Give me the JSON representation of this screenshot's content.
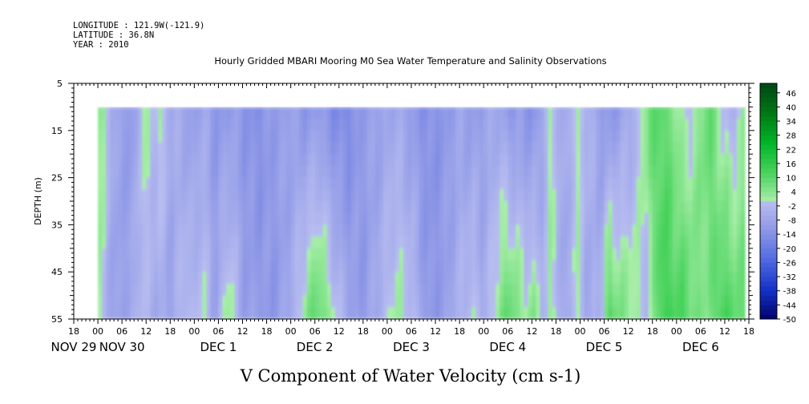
{
  "chart_data": {
    "type": "heatmap",
    "header": {
      "longitude": "LONGITUDE : 121.9W(-121.9)",
      "latitude": "LATITUDE : 36.8N",
      "year": "YEAR : 2010"
    },
    "title": "Hourly Gridded MBARI Mooring M0 Sea Water Temperature and Salinity Observations",
    "xlabel": "V Component of Water Velocity (cm s-1)",
    "ylabel": "DEPTH (m)",
    "x_unit": "hours",
    "x_range_hours": [
      -6,
      162
    ],
    "data_x_range_hours": [
      0,
      161
    ],
    "y_range": [
      5,
      55
    ],
    "data_y_range": [
      10,
      55
    ],
    "y_inverted": true,
    "y_ticks": [
      5,
      15,
      25,
      35,
      45,
      55
    ],
    "hour_ticks": [
      {
        "hours": -6,
        "label": "18"
      },
      {
        "hours": 0,
        "label": "00"
      },
      {
        "hours": 6,
        "label": "06"
      },
      {
        "hours": 12,
        "label": "12"
      },
      {
        "hours": 18,
        "label": "18"
      },
      {
        "hours": 24,
        "label": "00"
      },
      {
        "hours": 30,
        "label": "06"
      },
      {
        "hours": 36,
        "label": "12"
      },
      {
        "hours": 42,
        "label": "18"
      },
      {
        "hours": 48,
        "label": "00"
      },
      {
        "hours": 54,
        "label": "06"
      },
      {
        "hours": 60,
        "label": "12"
      },
      {
        "hours": 66,
        "label": "18"
      },
      {
        "hours": 72,
        "label": "00"
      },
      {
        "hours": 78,
        "label": "06"
      },
      {
        "hours": 84,
        "label": "12"
      },
      {
        "hours": 90,
        "label": "18"
      },
      {
        "hours": 96,
        "label": "00"
      },
      {
        "hours": 102,
        "label": "06"
      },
      {
        "hours": 108,
        "label": "12"
      },
      {
        "hours": 114,
        "label": "18"
      },
      {
        "hours": 120,
        "label": "00"
      },
      {
        "hours": 126,
        "label": "06"
      },
      {
        "hours": 132,
        "label": "12"
      },
      {
        "hours": 138,
        "label": "18"
      },
      {
        "hours": 144,
        "label": "00"
      },
      {
        "hours": 150,
        "label": "06"
      },
      {
        "hours": 156,
        "label": "12"
      },
      {
        "hours": 162,
        "label": "18"
      }
    ],
    "date_labels": [
      {
        "hours": -6,
        "label": "NOV 29"
      },
      {
        "hours": 6,
        "label": "NOV 30"
      },
      {
        "hours": 30,
        "label": "DEC  1"
      },
      {
        "hours": 54,
        "label": "DEC  2"
      },
      {
        "hours": 78,
        "label": "DEC  3"
      },
      {
        "hours": 102,
        "label": "DEC  4"
      },
      {
        "hours": 126,
        "label": "DEC  5"
      },
      {
        "hours": 150,
        "label": "DEC  6"
      }
    ],
    "colorbar": {
      "range": [
        -50,
        50
      ],
      "step": 2,
      "labels": [
        "46",
        "40",
        "34",
        "28",
        "22",
        "16",
        "10",
        "4",
        "-2",
        "-8",
        "-14",
        "-20",
        "-26",
        "-32",
        "-38",
        "-44",
        "-50"
      ]
    },
    "grid": false,
    "value_columns": [
      {
        "hours": 0,
        "top": 3,
        "bottom": 4
      },
      {
        "hours": 2,
        "top": 1,
        "bottom": -6
      },
      {
        "hours": 5,
        "top": -9,
        "bottom": -10
      },
      {
        "hours": 9,
        "top": -11,
        "bottom": -5
      },
      {
        "hours": 11,
        "top": 2,
        "bottom": -2
      },
      {
        "hours": 14,
        "top": -3,
        "bottom": -6
      },
      {
        "hours": 15,
        "top": 3,
        "bottom": -5
      },
      {
        "hours": 18,
        "top": -5,
        "bottom": -9
      },
      {
        "hours": 22,
        "top": -8,
        "bottom": 1
      },
      {
        "hours": 24,
        "top": -10,
        "bottom": -4
      },
      {
        "hours": 26,
        "top": -6,
        "bottom": 2
      },
      {
        "hours": 29,
        "top": -12,
        "bottom": -8
      },
      {
        "hours": 33,
        "top": -10,
        "bottom": 4
      },
      {
        "hours": 36,
        "top": -12,
        "bottom": -9
      },
      {
        "hours": 40,
        "top": -14,
        "bottom": -10
      },
      {
        "hours": 44,
        "top": -10,
        "bottom": -12
      },
      {
        "hours": 48,
        "top": -9,
        "bottom": -6
      },
      {
        "hours": 52,
        "top": -12,
        "bottom": 6
      },
      {
        "hours": 55,
        "top": -10,
        "bottom": 10
      },
      {
        "hours": 58,
        "top": -14,
        "bottom": 3
      },
      {
        "hours": 62,
        "top": -16,
        "bottom": -6
      },
      {
        "hours": 66,
        "top": -10,
        "bottom": -12
      },
      {
        "hours": 70,
        "top": -9,
        "bottom": -4
      },
      {
        "hours": 74,
        "top": -6,
        "bottom": 2
      },
      {
        "hours": 78,
        "top": -10,
        "bottom": 0
      },
      {
        "hours": 82,
        "top": -14,
        "bottom": -12
      },
      {
        "hours": 86,
        "top": -12,
        "bottom": -10
      },
      {
        "hours": 90,
        "top": -8,
        "bottom": -4
      },
      {
        "hours": 93,
        "top": -10,
        "bottom": 1
      },
      {
        "hours": 96,
        "top": -9,
        "bottom": -6
      },
      {
        "hours": 100,
        "top": -6,
        "bottom": 6
      },
      {
        "hours": 103,
        "top": -12,
        "bottom": 10
      },
      {
        "hours": 106,
        "top": -10,
        "bottom": 2
      },
      {
        "hours": 108,
        "top": -14,
        "bottom": 6
      },
      {
        "hours": 111,
        "top": -6,
        "bottom": -4
      },
      {
        "hours": 113,
        "top": 1,
        "bottom": 4
      },
      {
        "hours": 116,
        "top": -8,
        "bottom": -10
      },
      {
        "hours": 119,
        "top": 0,
        "bottom": 2
      },
      {
        "hours": 122,
        "top": -2,
        "bottom": -8
      },
      {
        "hours": 125,
        "top": -10,
        "bottom": -4
      },
      {
        "hours": 127,
        "top": -12,
        "bottom": 12
      },
      {
        "hours": 130,
        "top": -9,
        "bottom": 6
      },
      {
        "hours": 134,
        "top": -4,
        "bottom": 2
      },
      {
        "hours": 137,
        "top": 8,
        "bottom": -5
      },
      {
        "hours": 140,
        "top": 10,
        "bottom": 14
      },
      {
        "hours": 143,
        "top": 6,
        "bottom": 12
      },
      {
        "hours": 146,
        "top": -2,
        "bottom": 12
      },
      {
        "hours": 149,
        "top": 2,
        "bottom": 6
      },
      {
        "hours": 152,
        "top": 10,
        "bottom": 4
      },
      {
        "hours": 155,
        "top": 0,
        "bottom": 14
      },
      {
        "hours": 158,
        "top": -4,
        "bottom": 10
      },
      {
        "hours": 161,
        "top": 2,
        "bottom": 8
      }
    ]
  }
}
